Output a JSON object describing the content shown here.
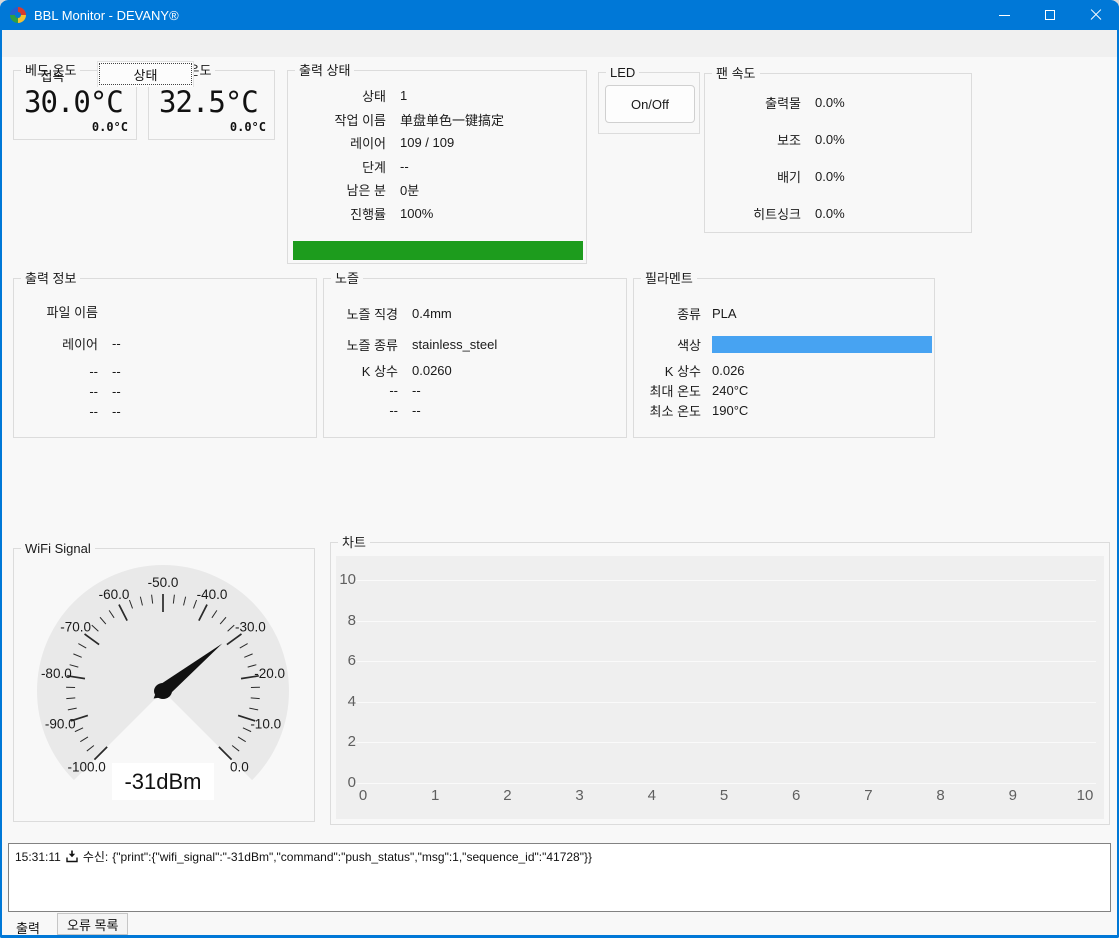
{
  "window": {
    "title": "BBL Monitor - DEVANY®"
  },
  "tabs": {
    "items": [
      {
        "label": "접속",
        "selected": false
      },
      {
        "label": "상태",
        "selected": true
      }
    ]
  },
  "bed_temp": {
    "title": "베드 온도",
    "current": "30.0°C",
    "target": "0.0°C"
  },
  "nozzle_temp": {
    "title": "노즐 온도",
    "current": "32.5°C",
    "target": "0.0°C"
  },
  "print_status": {
    "title": "출력 상태",
    "rows": [
      {
        "label": "상태",
        "value": "1"
      },
      {
        "label": "작업 이름",
        "value": "单盘单色一键搞定"
      },
      {
        "label": "레이어",
        "value": "109 / 109"
      },
      {
        "label": "단계",
        "value": "--"
      },
      {
        "label": "남은 분",
        "value": "0분"
      },
      {
        "label": "진행률",
        "value": "100%"
      }
    ],
    "progress_percent": 100,
    "progress_color": "#1d9c1d"
  },
  "led": {
    "title": "LED",
    "button_label": "On/Off"
  },
  "fan_speed": {
    "title": "팬 속도",
    "rows": [
      {
        "label": "출력물",
        "value": "0.0%"
      },
      {
        "label": "보조",
        "value": "0.0%"
      },
      {
        "label": "배기",
        "value": "0.0%"
      },
      {
        "label": "히트싱크",
        "value": "0.0%"
      }
    ]
  },
  "print_info": {
    "title": "출력 정보",
    "rows": [
      {
        "label": "파일 이름",
        "value": ""
      },
      {
        "label": "레이어",
        "value": "--"
      },
      {
        "label": "--",
        "value": "--"
      },
      {
        "label": "--",
        "value": "--"
      },
      {
        "label": "--",
        "value": "--"
      }
    ]
  },
  "nozzle": {
    "title": "노즐",
    "rows": [
      {
        "label": "노즐 직경",
        "value": "0.4mm"
      },
      {
        "label": "노즐 종류",
        "value": "stainless_steel"
      },
      {
        "label": "K 상수",
        "value": "0.0260"
      },
      {
        "label": "--",
        "value": "--"
      },
      {
        "label": "--",
        "value": "--"
      }
    ]
  },
  "filament": {
    "title": "필라멘트",
    "rows": [
      {
        "label": "종류",
        "value": "PLA"
      },
      {
        "label": "색상",
        "swatch": "#47a3f2"
      },
      {
        "label": "K 상수",
        "value": "0.026"
      },
      {
        "label": "최대 온도",
        "value": "240°C"
      },
      {
        "label": "최소 온도",
        "value": "190°C"
      }
    ]
  },
  "wifi_gauge": {
    "title": "WiFi Signal",
    "value": -31,
    "value_text": "-31dBm",
    "min": -100,
    "max": 0,
    "major_step": 10,
    "minor_step": 2.5,
    "labels": [
      "-100.0",
      "-90.0",
      "-80.0",
      "-70.0",
      "-60.0",
      "-50.0",
      "-40.0",
      "-30.0",
      "-20.0",
      "-10.0",
      "0.0"
    ],
    "dial_color": "#e9e9e9",
    "needle_color": "#111111"
  },
  "chart_data": {
    "type": "line",
    "title": "차트",
    "series": [],
    "x_ticks": [
      0,
      1,
      2,
      3,
      4,
      5,
      6,
      7,
      8,
      9,
      10
    ],
    "y_ticks": [
      10,
      8,
      6,
      4,
      2,
      0
    ],
    "xlim": [
      0,
      10
    ],
    "ylim": [
      0,
      10
    ],
    "grid": "horizontal",
    "plot_background": "#efefef"
  },
  "log": {
    "time": "15:31:11",
    "direction_label": "수신:",
    "message": "{\"print\":{\"wifi_signal\":\"-31dBm\",\"command\":\"push_status\",\"msg\":1,\"sequence_id\":\"41728\"}}"
  },
  "bottom_tabs": {
    "items": [
      {
        "label": "출력",
        "selected": true
      },
      {
        "label": "오류 목록",
        "selected": false
      }
    ]
  },
  "colors": {
    "accent": "#0078d7",
    "titlebar": "#0078d7",
    "progress_green": "#1d9c1d",
    "filament_blue": "#47a3f2"
  }
}
